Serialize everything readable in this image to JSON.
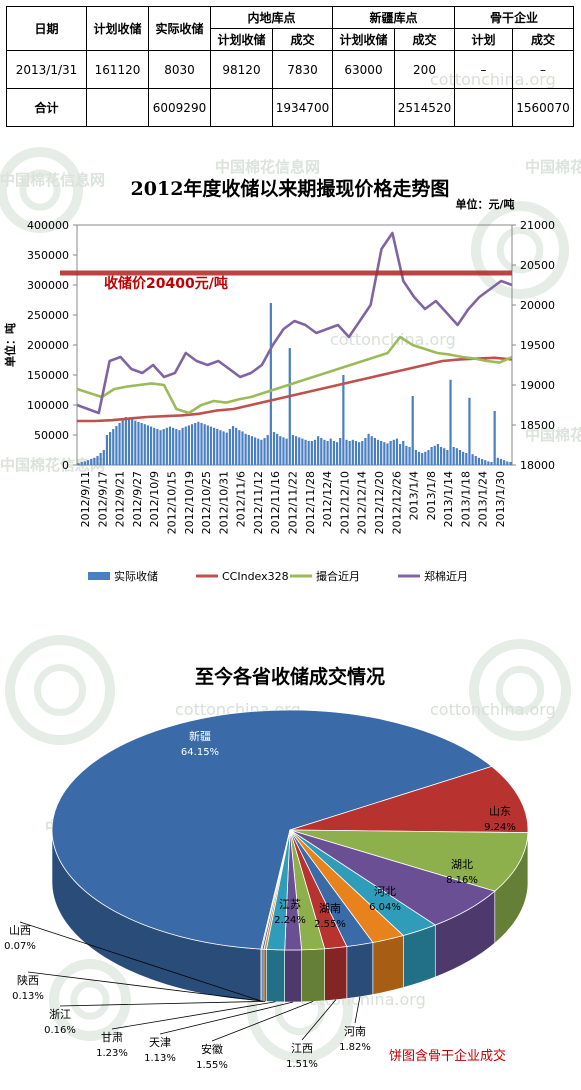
{
  "table": {
    "headers": {
      "date": "日期",
      "planned_storage": "计划收储",
      "actual_storage": "实际收储",
      "inland": "内地库点",
      "xinjiang": "新疆库点",
      "backbone": "骨干企业",
      "sub_planned": "计划收储",
      "sub_deal": "成交",
      "sub_plan_short": "计划"
    },
    "rows": [
      {
        "date": "2013/1/31",
        "planned": "161120",
        "actual": "8030",
        "inland_planned": "98120",
        "inland_deal": "7830",
        "xj_planned": "63000",
        "xj_deal": "200",
        "bb_plan": "–",
        "bb_deal": "–"
      },
      {
        "date": "合计",
        "planned": "",
        "actual": "6009290",
        "inland_planned": "",
        "inland_deal": "1934700",
        "xj_planned": "",
        "xj_deal": "2514520",
        "bb_plan": "",
        "bb_deal": "1560070"
      }
    ]
  },
  "watermark": {
    "text": "cottonchina.org",
    "cn_text": "中国棉花信息网"
  },
  "chart_data": [
    {
      "type": "bar",
      "title": "2012年度收储以来期撮现价格走势图",
      "unit_label": "单位：元/吨",
      "ylabel": "单位：吨",
      "ylim": [
        0,
        400000
      ],
      "y2lim": [
        18000,
        21000
      ],
      "left_ticks": [
        "0",
        "50000",
        "100000",
        "150000",
        "200000",
        "250000",
        "300000",
        "350000",
        "400000"
      ],
      "right_ticks": [
        "18000",
        "18500",
        "19000",
        "19500",
        "20000",
        "20500",
        "21000"
      ],
      "x_tick_labels": [
        "2012/9/11",
        "2012/9/17",
        "2012/9/21",
        "2012/9/27",
        "2012/10/9",
        "2012/10/15",
        "2012/10/19",
        "2012/10/25",
        "2012/10/31",
        "2012/11/6",
        "2012/11/12",
        "2012/11/16",
        "2012/11/22",
        "2012/11/28",
        "2012/12/4",
        "2012/12/10",
        "2012/12/14",
        "2012/12/20",
        "2012/12/26",
        "2013/1/4",
        "2013/1/8",
        "2013/1/14",
        "2013/1/18",
        "2013/1/24",
        "2013/1/30"
      ],
      "annotation": "收储价20400元/吨",
      "annotation_value": 20400,
      "annotation_color": "#b22222",
      "series": [
        {
          "name": "实际收储",
          "kind": "bar",
          "axis": "left",
          "color": "#4a7fc1",
          "values": [
            3000,
            5000,
            6000,
            8000,
            10000,
            12000,
            15000,
            20000,
            25000,
            50000,
            55000,
            60000,
            65000,
            70000,
            75000,
            80000,
            78000,
            76000,
            74000,
            72000,
            70000,
            68000,
            66000,
            64000,
            62000,
            60000,
            58000,
            60000,
            62000,
            64000,
            62000,
            60000,
            58000,
            62000,
            64000,
            66000,
            68000,
            70000,
            72000,
            70000,
            68000,
            66000,
            64000,
            62000,
            60000,
            58000,
            56000,
            54000,
            60000,
            65000,
            62000,
            58000,
            56000,
            52000,
            50000,
            48000,
            46000,
            44000,
            42000,
            45000,
            50000,
            270000,
            55000,
            52000,
            48000,
            46000,
            44000,
            195000,
            50000,
            48000,
            46000,
            44000,
            42000,
            40000,
            40000,
            42000,
            48000,
            45000,
            42000,
            40000,
            44000,
            40000,
            38000,
            45000,
            150000,
            42000,
            40000,
            42000,
            40000,
            38000,
            40000,
            45000,
            52000,
            48000,
            45000,
            42000,
            40000,
            38000,
            36000,
            40000,
            42000,
            44000,
            35000,
            40000,
            32000,
            30000,
            115000,
            25000,
            22000,
            20000,
            22000,
            25000,
            30000,
            32000,
            35000,
            30000,
            28000,
            25000,
            142000,
            30000,
            28000,
            25000,
            22000,
            20000,
            112000,
            18000,
            15000,
            12000,
            10000,
            8000,
            6000,
            5000,
            90000,
            12000,
            10000,
            8000,
            6000,
            5000
          ]
        },
        {
          "name": "CCIndex328",
          "kind": "line",
          "axis": "right",
          "color": "#c0504d",
          "values": [
            18550,
            18550,
            18560,
            18580,
            18600,
            18610,
            18620,
            18640,
            18680,
            18700,
            18750,
            18800,
            18850,
            18900,
            18950,
            19000,
            19050,
            19100,
            19150,
            19200,
            19250,
            19300,
            19320,
            19330,
            19340,
            19320
          ]
        },
        {
          "name": "撮合近月",
          "kind": "line",
          "axis": "right",
          "color": "#9bbb59",
          "values": [
            18950,
            18900,
            18850,
            18950,
            18980,
            19000,
            19020,
            19000,
            18700,
            18650,
            18750,
            18800,
            18780,
            18820,
            18850,
            18900,
            18950,
            19000,
            19050,
            19100,
            19150,
            19200,
            19250,
            19300,
            19350,
            19400,
            19600,
            19500,
            19450,
            19400,
            19380,
            19350,
            19330,
            19300,
            19280,
            19350
          ]
        },
        {
          "name": "郑棉近月",
          "kind": "line",
          "axis": "right",
          "color": "#8064a2",
          "values": [
            18750,
            18700,
            18650,
            19300,
            19350,
            19200,
            19150,
            19250,
            19100,
            19150,
            19400,
            19300,
            19250,
            19300,
            19200,
            19100,
            19150,
            19250,
            19500,
            19700,
            19800,
            19750,
            19650,
            19700,
            19750,
            19600,
            19800,
            20000,
            20700,
            20900,
            20300,
            20100,
            19950,
            20050,
            19900,
            19750,
            19950,
            20100,
            20200,
            20300,
            20250
          ]
        }
      ]
    },
    {
      "type": "pie",
      "title": "至今各省收储成交情况",
      "slices": [
        {
          "name": "新疆",
          "value": 64.15,
          "label": "64.15%",
          "color": "#3a6aa8"
        },
        {
          "name": "山东",
          "value": 9.24,
          "label": "9.24%",
          "color": "#b83230"
        },
        {
          "name": "湖北",
          "value": 8.16,
          "label": "8.16%",
          "color": "#8db04c"
        },
        {
          "name": "河北",
          "value": 6.04,
          "label": "6.04%",
          "color": "#6b4f95"
        },
        {
          "name": "湖南",
          "value": 2.55,
          "label": "2.55%",
          "color": "#2f9cba"
        },
        {
          "name": "江苏",
          "value": 2.24,
          "label": "2.24%",
          "color": "#e8821c"
        },
        {
          "name": "河南",
          "value": 1.82,
          "label": "1.82%",
          "color": "#3a6aa8"
        },
        {
          "name": "江西",
          "value": 1.51,
          "label": "1.51%",
          "color": "#b83230"
        },
        {
          "name": "安徽",
          "value": 1.55,
          "label": "1.55%",
          "color": "#8db04c"
        },
        {
          "name": "天津",
          "value": 1.13,
          "label": "1.13%",
          "color": "#6b4f95"
        },
        {
          "name": "甘肃",
          "value": 1.23,
          "label": "1.23%",
          "color": "#2f9cba"
        },
        {
          "name": "浙江",
          "value": 0.16,
          "label": "0.16%",
          "color": "#e8821c"
        },
        {
          "name": "陕西",
          "value": 0.13,
          "label": "0.13%",
          "color": "#3a6aa8"
        },
        {
          "name": "山西",
          "value": 0.07,
          "label": "0.07%",
          "color": "#b83230"
        }
      ],
      "note": "饼图含骨干企业成交",
      "note_color": "#c00000"
    }
  ]
}
